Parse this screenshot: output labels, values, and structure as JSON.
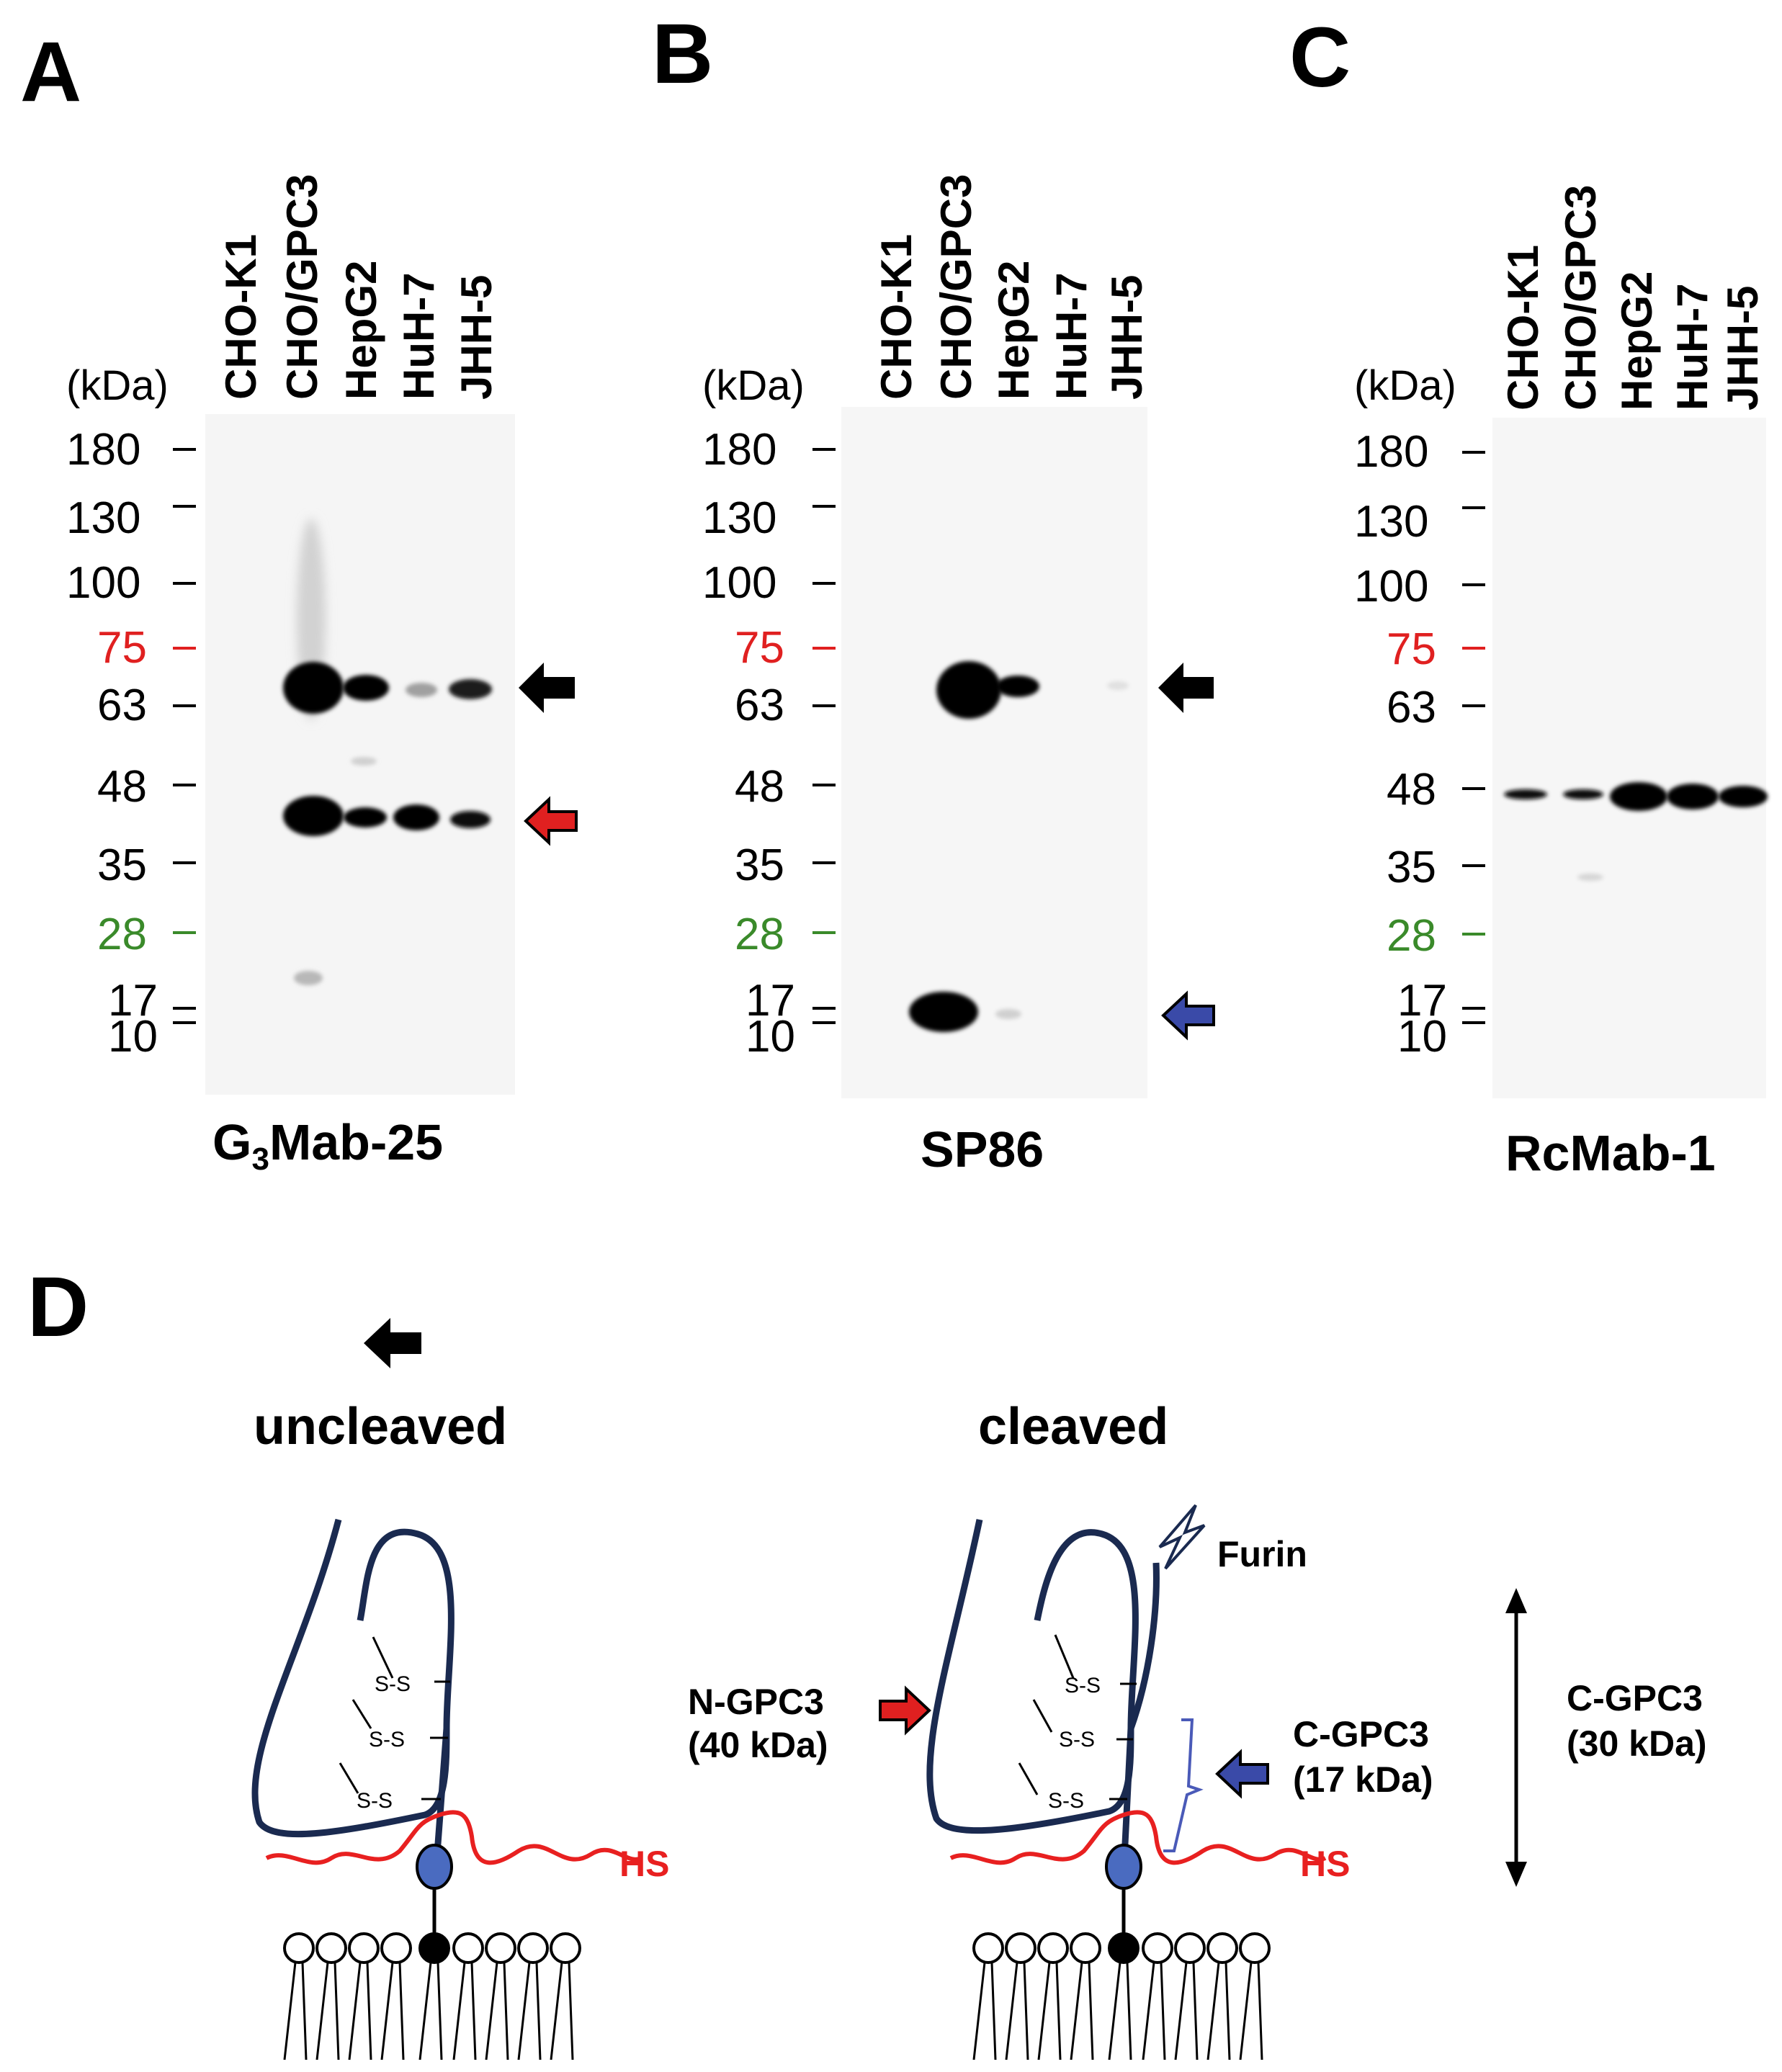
{
  "figure": {
    "lanes": [
      "CHO-K1",
      "CHO/GPC3",
      "HepG2",
      "HuH-7",
      "JHH-5"
    ],
    "kda_label": "(kDa)",
    "markers": [
      {
        "label": "180",
        "color": "#000000"
      },
      {
        "label": "130",
        "color": "#000000"
      },
      {
        "label": "100",
        "color": "#000000"
      },
      {
        "label": "75",
        "color": "#e02020"
      },
      {
        "label": "63",
        "color": "#000000"
      },
      {
        "label": "48",
        "color": "#000000"
      },
      {
        "label": "35",
        "color": "#000000"
      },
      {
        "label": "28",
        "color": "#3a8a2a"
      },
      {
        "label": "17",
        "color": "#000000"
      },
      {
        "label": "10",
        "color": "#000000"
      }
    ],
    "panels": [
      {
        "letter": "A",
        "antibody_main": "G",
        "antibody_sub": "3",
        "antibody_rest": "Mab-25"
      },
      {
        "letter": "B",
        "antibody": "SP86"
      },
      {
        "letter": "C",
        "antibody": "RcMab-1"
      }
    ],
    "panel_d": {
      "letter": "D",
      "uncleaved": "uncleaved",
      "cleaved": "cleaved",
      "furin": "Furin",
      "n_gpc3": "N-GPC3",
      "n_gpc3_kda": "(40 kDa)",
      "c_gpc3_17": "C-GPC3",
      "c_gpc3_17_kda": "(17 kDa)",
      "c_gpc3_30": "C-GPC3",
      "c_gpc3_30_kda": "(30 kDa)",
      "hs": "HS",
      "ss": "S-S"
    },
    "colors": {
      "red_arrow": "#e02020",
      "blue_arrow": "#3a4aa8",
      "protein": "#1a2a50",
      "hs": "#e82020",
      "anchor": "#4a6bc0"
    }
  }
}
